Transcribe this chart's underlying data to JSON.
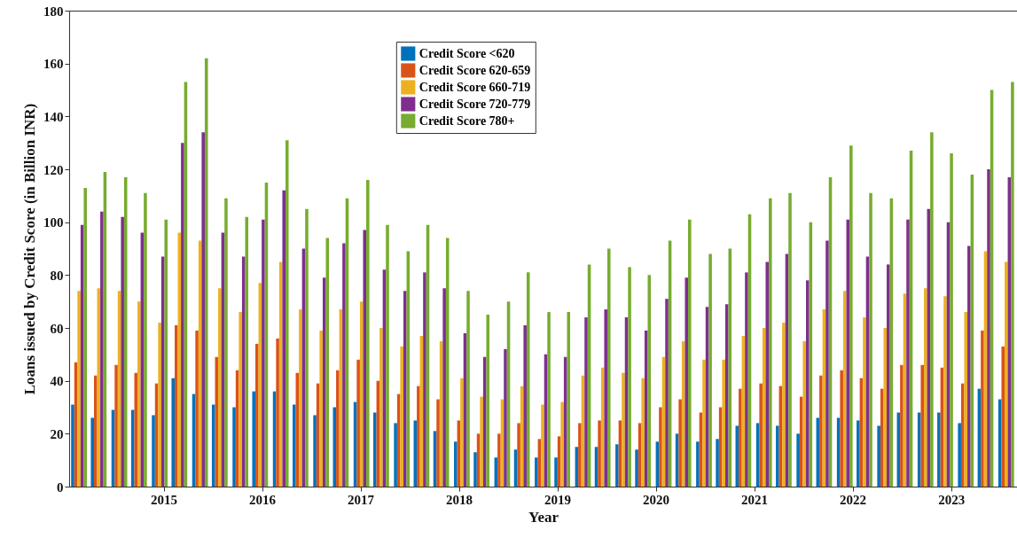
{
  "chart_data": {
    "type": "bar",
    "xlabel": "Year",
    "ylabel": "Loans issued by Credit Score (in Billion INR)",
    "x": [
      2014.14,
      2014.34,
      2014.55,
      2014.75,
      2014.96,
      2015.16,
      2015.37,
      2015.57,
      2015.78,
      2015.98,
      2016.19,
      2016.39,
      2016.6,
      2016.8,
      2017.01,
      2017.21,
      2017.42,
      2017.62,
      2017.82,
      2018.03,
      2018.23,
      2018.44,
      2018.64,
      2018.85,
      2019.05,
      2019.26,
      2019.46,
      2019.67,
      2019.87,
      2020.08,
      2020.28,
      2020.49,
      2020.69,
      2020.89,
      2021.1,
      2021.3,
      2021.51,
      2021.71,
      2021.92,
      2022.12,
      2022.33,
      2022.53,
      2022.74,
      2022.94,
      2023.15,
      2023.35,
      2023.56
    ],
    "series": [
      {
        "name": "Credit Score <620",
        "color": "#0072bd",
        "values": [
          31,
          26,
          29,
          29,
          27,
          41,
          35,
          31,
          30,
          36,
          36,
          31,
          27,
          30,
          32,
          28,
          24,
          25,
          21,
          17,
          13,
          11,
          14,
          11,
          11,
          15,
          15,
          16,
          14,
          17,
          20,
          17,
          18,
          23,
          24,
          23,
          20,
          26,
          26,
          25,
          23,
          28,
          28,
          28,
          24,
          37,
          33
        ]
      },
      {
        "name": "Credit Score 620-659",
        "color": "#d95319",
        "values": [
          47,
          42,
          46,
          43,
          39,
          61,
          59,
          49,
          44,
          54,
          56,
          43,
          39,
          44,
          48,
          40,
          35,
          38,
          33,
          25,
          20,
          20,
          24,
          18,
          19,
          24,
          25,
          25,
          24,
          30,
          33,
          28,
          30,
          37,
          39,
          38,
          34,
          42,
          44,
          41,
          37,
          46,
          46,
          45,
          39,
          59,
          53
        ]
      },
      {
        "name": "Credit Score 660-719",
        "color": "#edb120",
        "values": [
          74,
          75,
          74,
          70,
          62,
          96,
          93,
          75,
          66,
          77,
          85,
          67,
          59,
          67,
          70,
          60,
          53,
          57,
          55,
          41,
          34,
          33,
          38,
          31,
          32,
          42,
          45,
          43,
          41,
          49,
          55,
          48,
          48,
          57,
          60,
          62,
          55,
          67,
          74,
          64,
          60,
          73,
          75,
          72,
          66,
          89,
          85
        ]
      },
      {
        "name": "Credit Score 720-779",
        "color": "#7e2f8e",
        "values": [
          99,
          104,
          102,
          96,
          87,
          130,
          134,
          96,
          87,
          101,
          112,
          90,
          79,
          92,
          97,
          82,
          74,
          81,
          75,
          58,
          49,
          52,
          61,
          50,
          49,
          64,
          67,
          64,
          59,
          71,
          79,
          68,
          69,
          81,
          85,
          88,
          78,
          93,
          101,
          87,
          84,
          101,
          105,
          100,
          91,
          120,
          117
        ]
      },
      {
        "name": "Credit Score 780+",
        "color": "#77ac30",
        "values": [
          113,
          119,
          117,
          111,
          101,
          153,
          162,
          109,
          102,
          115,
          131,
          105,
          94,
          109,
          116,
          99,
          89,
          99,
          94,
          74,
          65,
          70,
          81,
          66,
          66,
          84,
          90,
          83,
          80,
          93,
          101,
          88,
          90,
          103,
          109,
          111,
          100,
          117,
          129,
          111,
          109,
          127,
          134,
          126,
          118,
          150,
          153
        ]
      }
    ],
    "xlim": [
      2014.04,
      2023.67
    ],
    "xticks": [
      2015,
      2016,
      2017,
      2018,
      2019,
      2020,
      2021,
      2022,
      2023
    ],
    "ylim": [
      0,
      180
    ],
    "yticks": [
      0,
      20,
      40,
      60,
      80,
      100,
      120,
      140,
      160,
      180
    ],
    "legend": "top"
  }
}
